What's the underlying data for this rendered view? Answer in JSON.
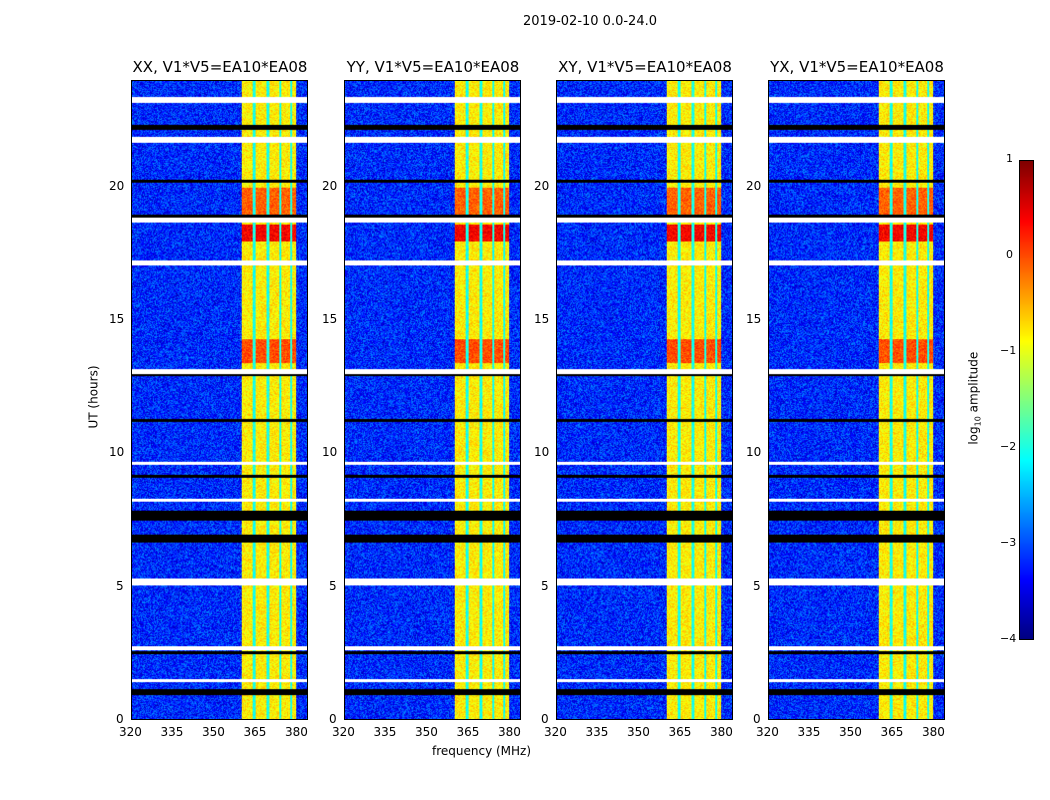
{
  "chart_data": {
    "type": "heatmap",
    "title": "2019-02-10 0.0-24.0",
    "xlabel": "frequency (MHz)",
    "ylabel": "UT (hours)",
    "xlim": [
      320,
      384
    ],
    "ylim": [
      0,
      24
    ],
    "xticks": [
      "320",
      "335",
      "350",
      "365",
      "380"
    ],
    "yticks": [
      "0",
      "5",
      "10",
      "15",
      "20"
    ],
    "panels": [
      {
        "title": "XX, V1*V5=EA10*EA08"
      },
      {
        "title": "YY, V1*V5=EA10*EA08"
      },
      {
        "title": "XY, V1*V5=EA10*EA08"
      },
      {
        "title": "YX, V1*V5=EA10*EA08"
      }
    ],
    "colorbar": {
      "label": "log10 amplitude",
      "label_main": "log",
      "label_sub": "10",
      "label_rest": " amplitude",
      "range": [
        -4,
        1
      ],
      "ticks": [
        "1",
        "0",
        "−1",
        "−2",
        "−3",
        "−4"
      ],
      "colormap": "jet"
    },
    "background_level": -3.2,
    "rfi_band_MHz": [
      360,
      380
    ],
    "rfi_subband_gaps_MHz": [
      364.5,
      369.5,
      374,
      378
    ],
    "rfi_level": -0.8,
    "strong_rfi_periods_hours": [
      [
        18.0,
        18.6,
        0.4
      ],
      [
        13.4,
        14.3,
        0.0
      ],
      [
        19.0,
        20.0,
        -0.1
      ]
    ],
    "flagged_rows_white_hours": [
      [
        23.2,
        23.4
      ],
      [
        21.7,
        21.9
      ],
      [
        18.7,
        18.9
      ],
      [
        17.1,
        17.25
      ],
      [
        13.0,
        13.2
      ],
      [
        9.6,
        9.7
      ],
      [
        8.2,
        8.3
      ],
      [
        5.05,
        5.3
      ],
      [
        2.6,
        2.75
      ],
      [
        1.4,
        1.5
      ]
    ],
    "flagged_rows_black_hours": [
      [
        22.2,
        22.35
      ],
      [
        20.2,
        20.3
      ],
      [
        18.9,
        19.0
      ],
      [
        12.9,
        13.0
      ],
      [
        11.2,
        11.3
      ],
      [
        9.1,
        9.2
      ],
      [
        7.5,
        7.85
      ],
      [
        6.65,
        6.95
      ],
      [
        2.45,
        2.55
      ],
      [
        0.9,
        1.15
      ]
    ]
  }
}
